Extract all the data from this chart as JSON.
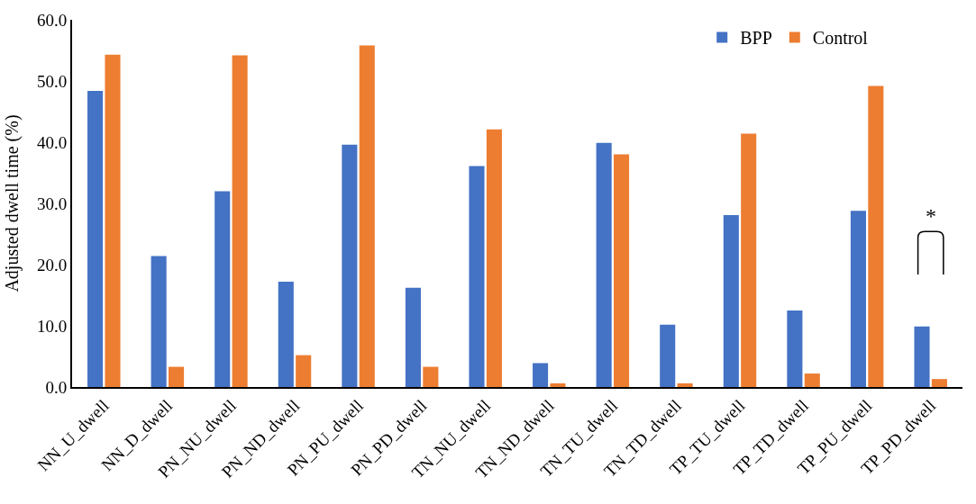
{
  "chart_data": {
    "type": "bar",
    "ylabel": "Adjusted dwell time (%)",
    "categories": [
      "NN_U_dwell",
      "NN_D_dwell",
      "PN_NU_dwell",
      "PN_ND_dwell",
      "PN_PU_dwell",
      "PN_PD_dwell",
      "TN_NU_dwell",
      "TN_ND_dwell",
      "TN_TU_dwell",
      "TN_TD_dwell",
      "TP_TU_dwell",
      "TP_TD_dwell",
      "TP_PU_dwell",
      "TP_PD_dwell"
    ],
    "series": [
      {
        "name": "BPP",
        "color": "#4472c4",
        "values": [
          48.4,
          21.4,
          32.0,
          17.2,
          39.6,
          16.2,
          36.1,
          3.9,
          39.9,
          10.2,
          28.1,
          12.5,
          28.8,
          9.9
        ]
      },
      {
        "name": "Control",
        "color": "#ed7d31",
        "values": [
          54.3,
          3.3,
          54.2,
          5.2,
          55.8,
          3.3,
          42.1,
          0.6,
          38.0,
          0.6,
          41.4,
          2.2,
          49.2,
          1.3
        ]
      }
    ],
    "ylim": [
      0,
      60
    ],
    "yticks": [
      {
        "value": 0,
        "label": "0.0"
      },
      {
        "value": 10,
        "label": "10.0"
      },
      {
        "value": 20,
        "label": "20.0"
      },
      {
        "value": 30,
        "label": "30.0"
      },
      {
        "value": 40,
        "label": "40.0"
      },
      {
        "value": 50,
        "label": "50.0"
      },
      {
        "value": 60,
        "label": "60.0"
      }
    ],
    "legend": "top right",
    "annotations": [
      "*"
    ]
  }
}
